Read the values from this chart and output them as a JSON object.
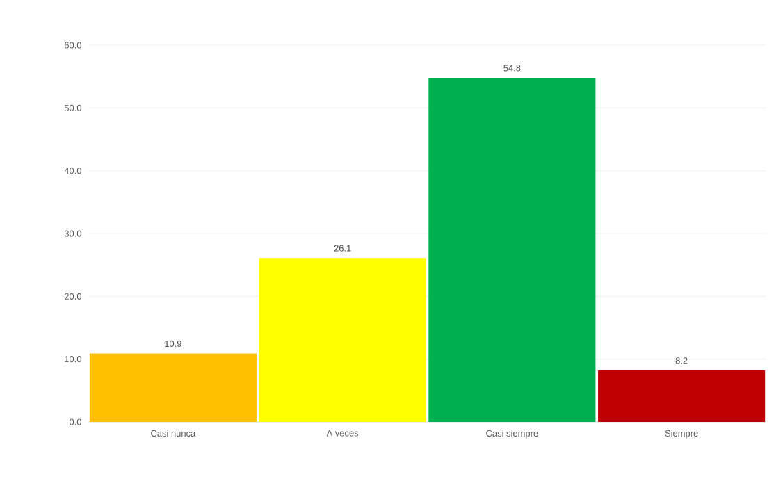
{
  "chart_data": {
    "type": "bar",
    "categories": [
      "Casi nunca",
      "A veces",
      "Casi siempre",
      "Siempre"
    ],
    "values": [
      10.9,
      26.1,
      54.8,
      8.2
    ],
    "colors": [
      "#ffc000",
      "#ffff00",
      "#00b050",
      "#c00000"
    ],
    "ylim": [
      0,
      60
    ],
    "yticks": [
      {
        "value": 0,
        "label": "0.0"
      },
      {
        "value": 10,
        "label": "10.0"
      },
      {
        "value": 20,
        "label": "20.0"
      },
      {
        "value": 30,
        "label": "30.0"
      },
      {
        "value": 40,
        "label": "40.0"
      },
      {
        "value": 50,
        "label": "50.0"
      },
      {
        "value": 60,
        "label": "60.0"
      }
    ],
    "grid": "y",
    "data_labels": true
  }
}
